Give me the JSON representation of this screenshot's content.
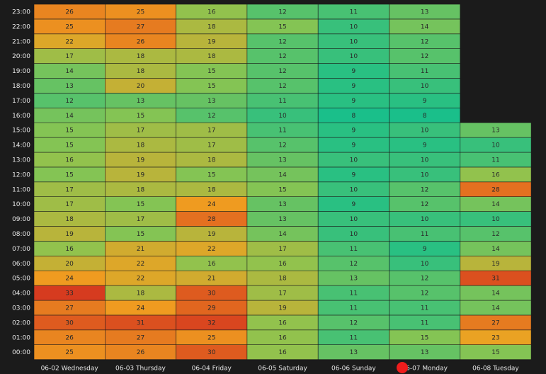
{
  "chart_data": {
    "type": "heatmap",
    "x_categories": [
      "06-02 Wednesday",
      "06-03 Thursday",
      "06-04 Friday",
      "06-05 Saturday",
      "06-06 Sunday",
      "06-07 Monday",
      "06-08 Tuesday"
    ],
    "y_categories": [
      "00:00",
      "01:00",
      "02:00",
      "03:00",
      "04:00",
      "05:00",
      "06:00",
      "07:00",
      "08:00",
      "09:00",
      "10:00",
      "11:00",
      "12:00",
      "13:00",
      "14:00",
      "15:00",
      "16:00",
      "17:00",
      "18:00",
      "19:00",
      "20:00",
      "21:00",
      "22:00",
      "23:00"
    ],
    "values": [
      [
        25,
        26,
        30,
        16,
        13,
        13,
        15
      ],
      [
        26,
        27,
        25,
        16,
        11,
        15,
        23
      ],
      [
        30,
        31,
        32,
        16,
        12,
        11,
        27
      ],
      [
        27,
        24,
        29,
        19,
        11,
        11,
        14
      ],
      [
        33,
        18,
        30,
        17,
        11,
        12,
        14
      ],
      [
        24,
        22,
        21,
        18,
        13,
        12,
        31
      ],
      [
        20,
        22,
        16,
        16,
        12,
        10,
        19
      ],
      [
        16,
        21,
        22,
        17,
        11,
        9,
        14
      ],
      [
        19,
        15,
        19,
        14,
        10,
        11,
        12
      ],
      [
        18,
        17,
        28,
        13,
        10,
        10,
        10
      ],
      [
        17,
        15,
        24,
        13,
        9,
        12,
        14
      ],
      [
        17,
        18,
        18,
        15,
        10,
        12,
        28
      ],
      [
        15,
        19,
        15,
        14,
        9,
        10,
        16
      ],
      [
        16,
        19,
        18,
        13,
        10,
        10,
        11
      ],
      [
        15,
        18,
        17,
        12,
        9,
        9,
        10
      ],
      [
        15,
        17,
        17,
        11,
        9,
        10,
        13
      ],
      [
        14,
        15,
        12,
        10,
        8,
        8,
        null
      ],
      [
        12,
        13,
        13,
        11,
        9,
        9,
        null
      ],
      [
        13,
        20,
        15,
        12,
        9,
        10,
        null
      ],
      [
        14,
        18,
        15,
        12,
        9,
        11,
        null
      ],
      [
        17,
        18,
        18,
        12,
        10,
        12,
        null
      ],
      [
        22,
        26,
        19,
        12,
        10,
        12,
        null
      ],
      [
        25,
        27,
        18,
        15,
        10,
        14,
        null
      ],
      [
        26,
        25,
        16,
        12,
        11,
        13,
        null
      ]
    ],
    "color_range": [
      8,
      33
    ],
    "colors": {
      "low": "#1abf8a",
      "mid_low": "#8cc450",
      "mid": "#f0a020",
      "high": "#d63b1f",
      "background": "#1b1b1b",
      "marker": "#ef1c1c"
    }
  }
}
